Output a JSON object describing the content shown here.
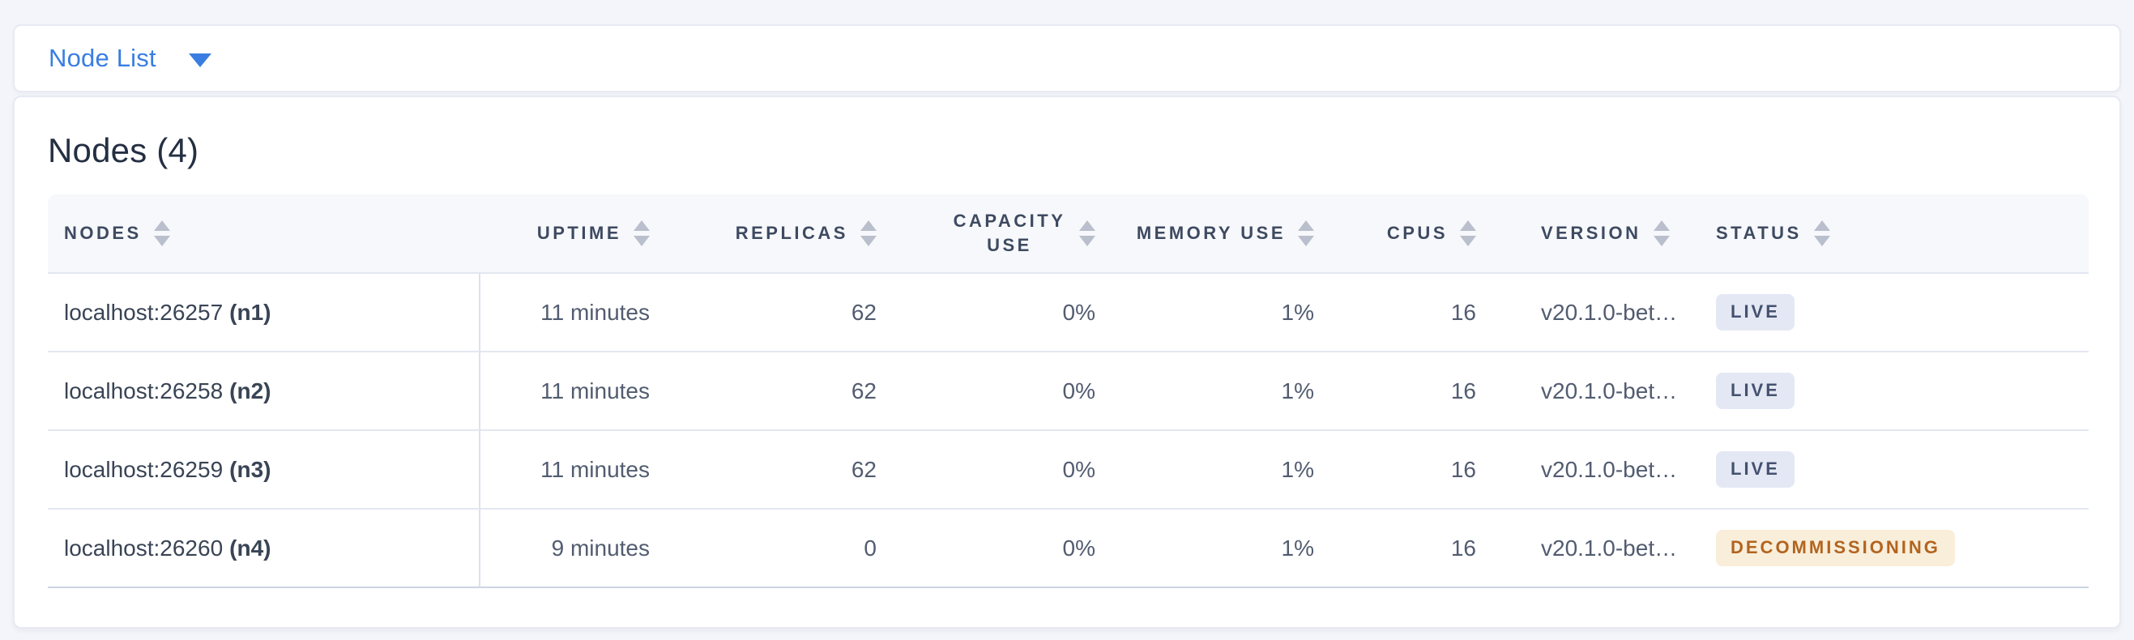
{
  "view_selector": {
    "label": "Node List",
    "caret_icon": "triangle-down",
    "accent_color": "#3a7de2"
  },
  "nodes_card": {
    "title": "Nodes (4)"
  },
  "table": {
    "columns": [
      {
        "label": "NODES",
        "align": "left",
        "sortable": true
      },
      {
        "label": "UPTIME",
        "align": "right",
        "sortable": true
      },
      {
        "label": "REPLICAS",
        "align": "right",
        "sortable": true
      },
      {
        "label": "CAPACITY USE",
        "align": "right",
        "sortable": true
      },
      {
        "label": "MEMORY USE",
        "align": "right",
        "sortable": true
      },
      {
        "label": "CPUS",
        "align": "right",
        "sortable": true
      },
      {
        "label": "VERSION",
        "align": "left",
        "sortable": true
      },
      {
        "label": "STATUS",
        "align": "left",
        "sortable": true
      }
    ],
    "rows": [
      {
        "address": "localhost:26257",
        "node_id": "(n1)",
        "uptime": "11 minutes",
        "replicas": "62",
        "capacity_use": "0%",
        "memory_use": "1%",
        "cpus": "16",
        "version": "v20.1.0-bet…",
        "status": "LIVE"
      },
      {
        "address": "localhost:26258",
        "node_id": "(n2)",
        "uptime": "11 minutes",
        "replicas": "62",
        "capacity_use": "0%",
        "memory_use": "1%",
        "cpus": "16",
        "version": "v20.1.0-bet…",
        "status": "LIVE"
      },
      {
        "address": "localhost:26259",
        "node_id": "(n3)",
        "uptime": "11 minutes",
        "replicas": "62",
        "capacity_use": "0%",
        "memory_use": "1%",
        "cpus": "16",
        "version": "v20.1.0-bet…",
        "status": "LIVE"
      },
      {
        "address": "localhost:26260",
        "node_id": "(n4)",
        "uptime": "9 minutes",
        "replicas": "0",
        "capacity_use": "0%",
        "memory_use": "1%",
        "cpus": "16",
        "version": "v20.1.0-bet…",
        "status": "DECOMMISSIONING"
      }
    ],
    "status_colors": {
      "live_background": "#e4e8f4",
      "live_text": "#44516f",
      "decommissioning_background": "#f9eeda",
      "decommissioning_text": "#b2641f"
    }
  }
}
